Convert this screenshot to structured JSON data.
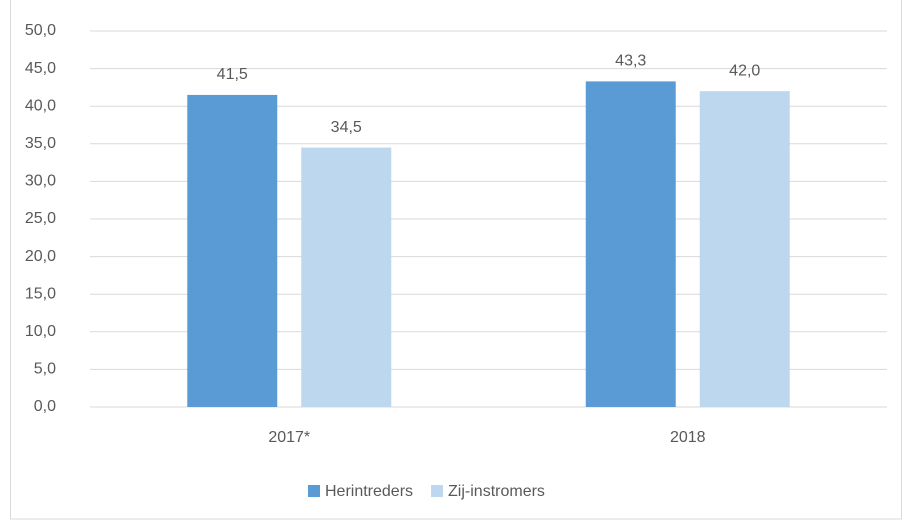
{
  "chart_data": {
    "type": "bar",
    "categories": [
      "2017*",
      "2018"
    ],
    "series": [
      {
        "name": "Herintreders",
        "color": "#5b9bd5",
        "values": [
          41.5,
          43.3
        ],
        "value_labels": [
          "41,5",
          "43,3"
        ]
      },
      {
        "name": "Zij-instromers",
        "color": "#bdd7ee",
        "values": [
          34.5,
          42.0
        ],
        "value_labels": [
          "34,5",
          "42,0"
        ]
      }
    ],
    "ylim": [
      0,
      50
    ],
    "yticks": [
      {
        "value": 0,
        "label": "0,0"
      },
      {
        "value": 5,
        "label": "5,0"
      },
      {
        "value": 10,
        "label": "10,0"
      },
      {
        "value": 15,
        "label": "15,0"
      },
      {
        "value": 20,
        "label": "20,0"
      },
      {
        "value": 25,
        "label": "25,0"
      },
      {
        "value": 30,
        "label": "30,0"
      },
      {
        "value": 35,
        "label": "35,0"
      },
      {
        "value": 40,
        "label": "40,0"
      },
      {
        "value": 45,
        "label": "45,0"
      },
      {
        "value": 50,
        "label": "50,0"
      }
    ],
    "grid": true,
    "legend": "bottom"
  }
}
